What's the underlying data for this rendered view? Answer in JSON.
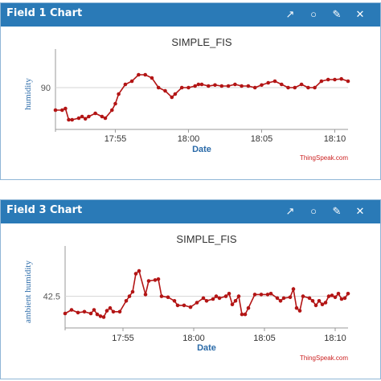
{
  "panels": [
    {
      "title": "Field 1 Chart"
    },
    {
      "title": "Field 3 Chart"
    }
  ],
  "icons": [
    "external-link-icon",
    "comment-icon",
    "pencil-icon",
    "close-icon"
  ],
  "colors": {
    "header": "#2a7ab7",
    "line": "#b31515",
    "axis_text": "#555555",
    "date_label": "#2a6aa8",
    "credit": "#cc2222"
  },
  "chart_data": [
    {
      "type": "line",
      "title": "SIMPLE_FIS",
      "xlabel": "Date",
      "ylabel": "humidity",
      "xlim": [
        0,
        88
      ],
      "ylim": [
        77,
        99
      ],
      "y_ticks": [
        90
      ],
      "x_ticks": [
        {
          "x": 18,
          "label": "17:55"
        },
        {
          "x": 40,
          "label": "18:00"
        },
        {
          "x": 62,
          "label": "18:05"
        },
        {
          "x": 84,
          "label": "18:10"
        }
      ],
      "grid": true,
      "credit": "ThingSpeak.com",
      "series": [
        {
          "values": [
            [
              0,
              83
            ],
            [
              2,
              83
            ],
            [
              3,
              83.5
            ],
            [
              4,
              80
            ],
            [
              5,
              80
            ],
            [
              7,
              80.5
            ],
            [
              8,
              81
            ],
            [
              9,
              80.3
            ],
            [
              10,
              81
            ],
            [
              12,
              82
            ],
            [
              14,
              81
            ],
            [
              15,
              80.5
            ],
            [
              17,
              83
            ],
            [
              18,
              85
            ],
            [
              19,
              88
            ],
            [
              21,
              91
            ],
            [
              23,
              92
            ],
            [
              25,
              94
            ],
            [
              27,
              94
            ],
            [
              29,
              93
            ],
            [
              31,
              90
            ],
            [
              33,
              89
            ],
            [
              35,
              87
            ],
            [
              36,
              88
            ],
            [
              38,
              90
            ],
            [
              40,
              90
            ],
            [
              42,
              90.5
            ],
            [
              43,
              91
            ],
            [
              44,
              91
            ],
            [
              46,
              90.5
            ],
            [
              48,
              90.8
            ],
            [
              50,
              90.5
            ],
            [
              52,
              90.5
            ],
            [
              54,
              91
            ],
            [
              56,
              90.5
            ],
            [
              58,
              90.5
            ],
            [
              60,
              90
            ],
            [
              62,
              90.8
            ],
            [
              64,
              91.5
            ],
            [
              66,
              92
            ],
            [
              68,
              91
            ],
            [
              70,
              90
            ],
            [
              72,
              90
            ],
            [
              74,
              91
            ],
            [
              76,
              90
            ],
            [
              78,
              90
            ],
            [
              80,
              92
            ],
            [
              82,
              92.5
            ],
            [
              84,
              92.5
            ],
            [
              86,
              92.7
            ],
            [
              88,
              92
            ]
          ]
        }
      ]
    },
    {
      "type": "line",
      "title": "SIMPLE_FIS",
      "xlabel": "Date",
      "ylabel": "ambient humidity",
      "xlim": [
        0,
        88
      ],
      "ylim": [
        39,
        47
      ],
      "y_ticks": [
        42.5
      ],
      "x_ticks": [
        {
          "x": 18,
          "label": "17:55"
        },
        {
          "x": 40,
          "label": "18:00"
        },
        {
          "x": 62,
          "label": "18:05"
        },
        {
          "x": 84,
          "label": "18:10"
        }
      ],
      "grid": true,
      "credit": "ThingSpeak.com",
      "series": [
        {
          "values": [
            [
              0,
              40.6
            ],
            [
              2,
              41
            ],
            [
              4,
              40.7
            ],
            [
              6,
              40.8
            ],
            [
              8,
              40.6
            ],
            [
              9,
              41
            ],
            [
              10,
              40.5
            ],
            [
              11,
              40.3
            ],
            [
              12,
              40.2
            ],
            [
              13,
              40.9
            ],
            [
              14,
              41.2
            ],
            [
              15,
              40.8
            ],
            [
              17,
              40.8
            ],
            [
              19,
              42
            ],
            [
              20,
              42.5
            ],
            [
              21,
              43
            ],
            [
              22,
              45
            ],
            [
              23,
              45.3
            ],
            [
              25,
              42.7
            ],
            [
              26,
              44.2
            ],
            [
              28,
              44.3
            ],
            [
              29,
              44.4
            ],
            [
              30,
              42.5
            ],
            [
              32,
              42.4
            ],
            [
              34,
              42
            ],
            [
              35,
              41.5
            ],
            [
              37,
              41.5
            ],
            [
              39,
              41.3
            ],
            [
              41,
              41.8
            ],
            [
              43,
              42.3
            ],
            [
              44,
              42
            ],
            [
              46,
              42.2
            ],
            [
              47,
              42.5
            ],
            [
              48,
              42.3
            ],
            [
              50,
              42.5
            ],
            [
              51,
              42.8
            ],
            [
              52,
              41.6
            ],
            [
              53,
              42
            ],
            [
              54,
              42.5
            ],
            [
              55,
              40.5
            ],
            [
              56,
              40.5
            ],
            [
              57,
              41.2
            ],
            [
              59,
              42.7
            ],
            [
              61,
              42.7
            ],
            [
              63,
              42.7
            ],
            [
              64,
              42.8
            ],
            [
              66,
              42.3
            ],
            [
              67,
              42
            ],
            [
              68,
              42.3
            ],
            [
              70,
              42.4
            ],
            [
              71,
              43.3
            ],
            [
              72,
              41.2
            ],
            [
              73,
              40.9
            ],
            [
              74,
              42.5
            ],
            [
              76,
              42.3
            ],
            [
              77,
              42
            ],
            [
              78,
              41.5
            ],
            [
              79,
              42
            ],
            [
              80,
              41.6
            ],
            [
              81,
              41.8
            ],
            [
              82,
              42.5
            ],
            [
              83,
              42.6
            ],
            [
              84,
              42.4
            ],
            [
              85,
              42.8
            ],
            [
              86,
              42.2
            ],
            [
              87,
              42.3
            ],
            [
              88,
              42.8
            ]
          ]
        }
      ]
    }
  ]
}
